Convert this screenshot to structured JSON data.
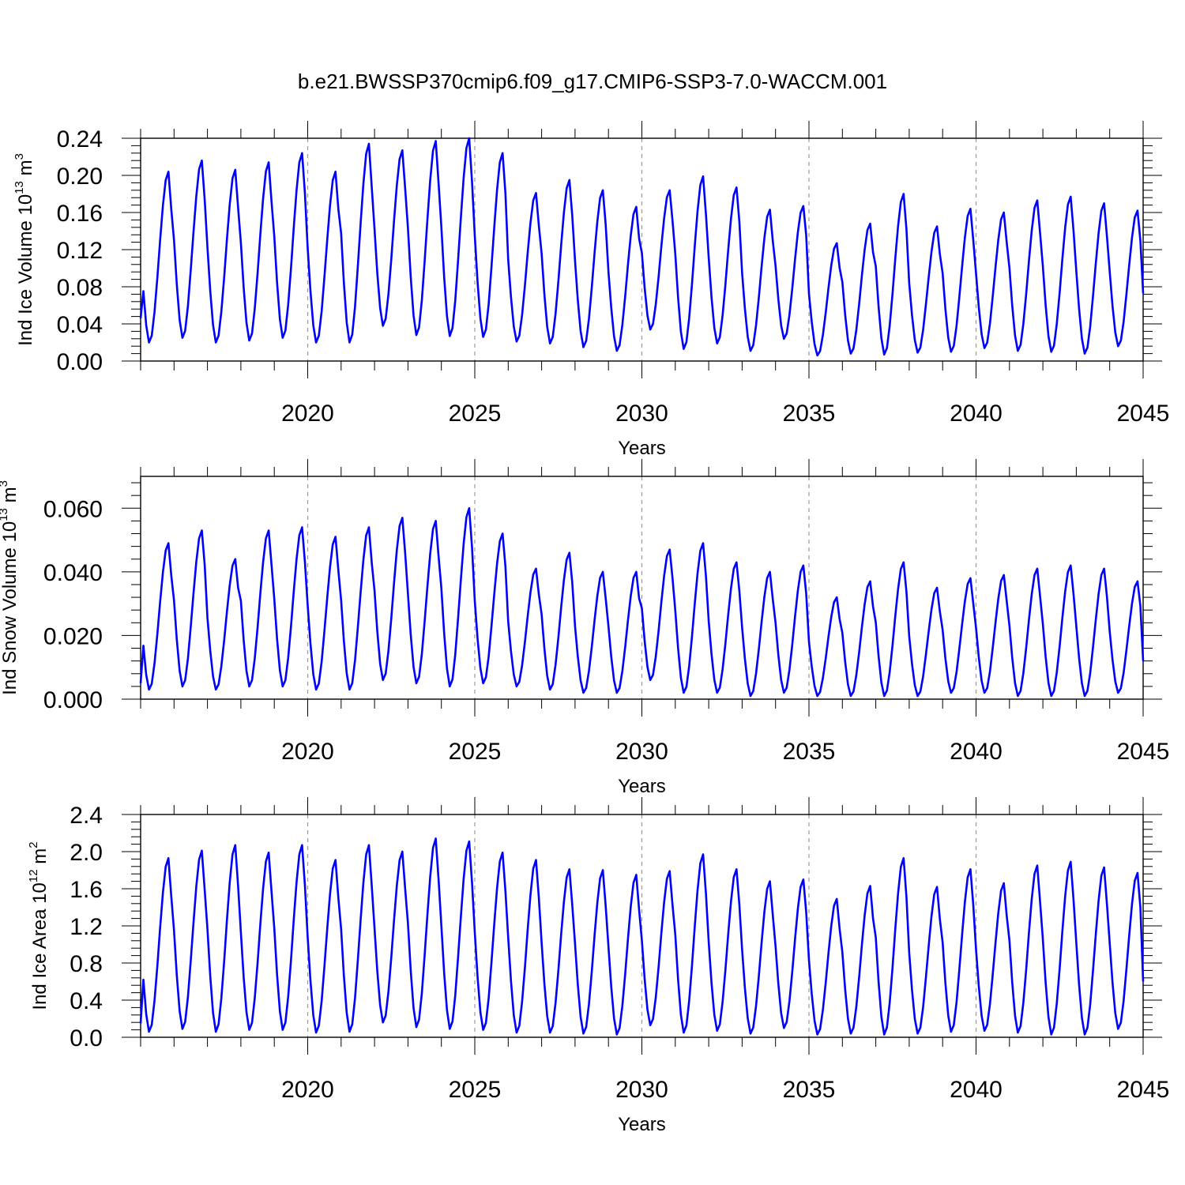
{
  "title": "b.e21.BWSSP370cmip6.f09_g17.CMIP6-SSP3-7.0-WACCM.001",
  "line_color": "#0000ff",
  "grid_color": "#999999",
  "chart_data": [
    {
      "type": "line",
      "name": "ind-ice-volume",
      "ylabel": "Ind Ice Volume 10",
      "ylabel_exp": "13",
      "ylabel_unit": " m",
      "ylabel_unit_exp": "3",
      "xlabel": "Years",
      "xlim": [
        2015,
        2045
      ],
      "ylim": [
        0,
        0.24
      ],
      "yticks": [
        0.0,
        0.04,
        0.08,
        0.12,
        0.16,
        0.2,
        0.24
      ],
      "ytick_labels": [
        "0.00",
        "0.04",
        "0.08",
        "0.12",
        "0.16",
        "0.20",
        "0.24"
      ],
      "xticks": [
        2020,
        2025,
        2030,
        2035,
        2040,
        2045
      ],
      "xtick_labels": [
        "2020",
        "2025",
        "2030",
        "2035",
        "2040",
        "2045"
      ],
      "ymin_default": 0.022,
      "peaks": [
        0.204,
        0.216,
        0.206,
        0.214,
        0.224,
        0.204,
        0.234,
        0.227,
        0.237,
        0.24,
        0.224,
        0.181,
        0.195,
        0.184,
        0.166,
        0.184,
        0.199,
        0.187,
        0.163,
        0.167,
        0.127,
        0.148,
        0.18,
        0.145,
        0.164,
        0.16,
        0.173,
        0.177,
        0.17,
        0.162
      ],
      "troughs": [
        0.02,
        0.025,
        0.02,
        0.022,
        0.025,
        0.02,
        0.02,
        0.038,
        0.028,
        0.027,
        0.026,
        0.021,
        0.019,
        0.015,
        0.011,
        0.034,
        0.013,
        0.019,
        0.011,
        0.024,
        0.006,
        0.008,
        0.007,
        0.009,
        0.01,
        0.014,
        0.011,
        0.01,
        0.008,
        0.016
      ],
      "start_value": 0.046,
      "end_value": 0.073
    },
    {
      "type": "line",
      "name": "ind-snow-volume",
      "ylabel": "Ind Snow Volume 10",
      "ylabel_exp": "13",
      "ylabel_unit": " m",
      "ylabel_unit_exp": "3",
      "xlabel": "Years",
      "xlim": [
        2015,
        2045
      ],
      "ylim": [
        0,
        0.07
      ],
      "yticks": [
        0.0,
        0.02,
        0.04,
        0.06
      ],
      "ytick_labels": [
        "0.000",
        "0.020",
        "0.040",
        "0.060"
      ],
      "xticks": [
        2020,
        2025,
        2030,
        2035,
        2040,
        2045
      ],
      "xtick_labels": [
        "2020",
        "2025",
        "2030",
        "2035",
        "2040",
        "2045"
      ],
      "peaks": [
        0.049,
        0.053,
        0.044,
        0.053,
        0.054,
        0.051,
        0.054,
        0.057,
        0.056,
        0.06,
        0.052,
        0.041,
        0.046,
        0.04,
        0.04,
        0.047,
        0.049,
        0.043,
        0.04,
        0.042,
        0.032,
        0.037,
        0.043,
        0.035,
        0.038,
        0.039,
        0.041,
        0.042,
        0.041,
        0.037
      ],
      "troughs": [
        0.003,
        0.004,
        0.003,
        0.004,
        0.004,
        0.003,
        0.003,
        0.006,
        0.005,
        0.004,
        0.005,
        0.004,
        0.003,
        0.002,
        0.002,
        0.006,
        0.002,
        0.002,
        0.001,
        0.002,
        0.001,
        0.001,
        0.001,
        0.001,
        0.002,
        0.002,
        0.001,
        0.001,
        0.001,
        0.002
      ],
      "start_value": 0.005,
      "end_value": 0.012
    },
    {
      "type": "line",
      "name": "ind-ice-area",
      "ylabel": "Ind Ice Area 10",
      "ylabel_exp": "12",
      "ylabel_unit": " m",
      "ylabel_unit_exp": "2",
      "xlabel": "Years",
      "xlim": [
        2015,
        2045
      ],
      "ylim": [
        0,
        2.4
      ],
      "yticks": [
        0.0,
        0.4,
        0.8,
        1.2,
        1.6,
        2.0,
        2.4
      ],
      "ytick_labels": [
        "0.0",
        "0.4",
        "0.8",
        "1.2",
        "1.6",
        "2.0",
        "2.4"
      ],
      "xticks": [
        2020,
        2025,
        2030,
        2035,
        2040,
        2045
      ],
      "xtick_labels": [
        "2020",
        "2025",
        "2030",
        "2035",
        "2040",
        "2045"
      ],
      "peaks": [
        1.93,
        2.01,
        2.07,
        1.99,
        2.07,
        1.91,
        2.07,
        2.0,
        2.14,
        2.11,
        1.99,
        1.91,
        1.81,
        1.8,
        1.75,
        1.79,
        1.97,
        1.81,
        1.68,
        1.7,
        1.49,
        1.63,
        1.93,
        1.62,
        1.81,
        1.66,
        1.85,
        1.89,
        1.83,
        1.77
      ],
      "troughs": [
        0.06,
        0.09,
        0.06,
        0.08,
        0.08,
        0.05,
        0.06,
        0.16,
        0.11,
        0.09,
        0.08,
        0.05,
        0.05,
        0.04,
        0.03,
        0.13,
        0.05,
        0.07,
        0.04,
        0.1,
        0.03,
        0.04,
        0.03,
        0.04,
        0.06,
        0.07,
        0.05,
        0.03,
        0.03,
        0.09
      ],
      "start_value": 0.15,
      "end_value": 0.6
    }
  ]
}
